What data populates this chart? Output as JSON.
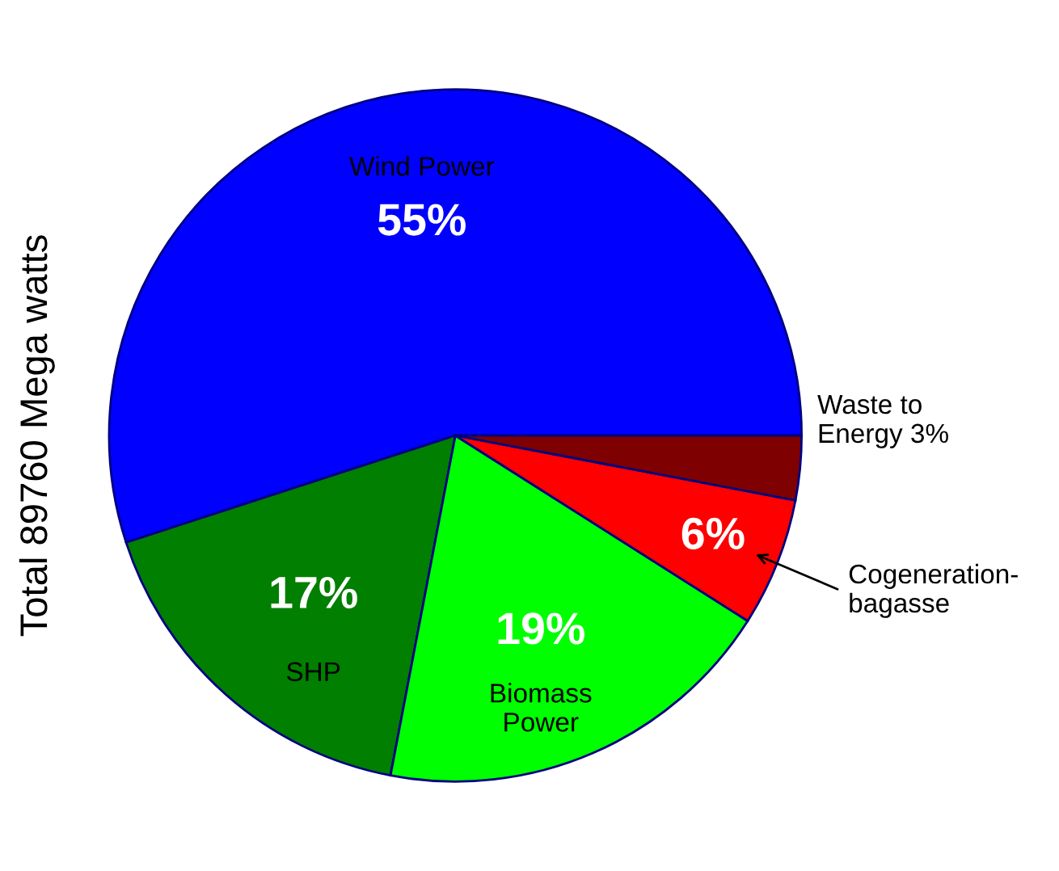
{
  "chart_data": {
    "type": "pie",
    "ylabel": "Total 89760 Mega watts",
    "categories": [
      "Wind Power",
      "SHP",
      "Biomass\nPower",
      "Cogeneration-\nbagasse",
      "Waste to\nEnergy"
    ],
    "values": [
      55,
      17,
      19,
      6,
      3
    ],
    "value_labels": [
      "55%",
      "17%",
      "19%",
      "6%",
      "3%"
    ],
    "colors": [
      "#0000ff",
      "#007f00",
      "#00ff00",
      "#ff0000",
      "#7f0000"
    ]
  }
}
